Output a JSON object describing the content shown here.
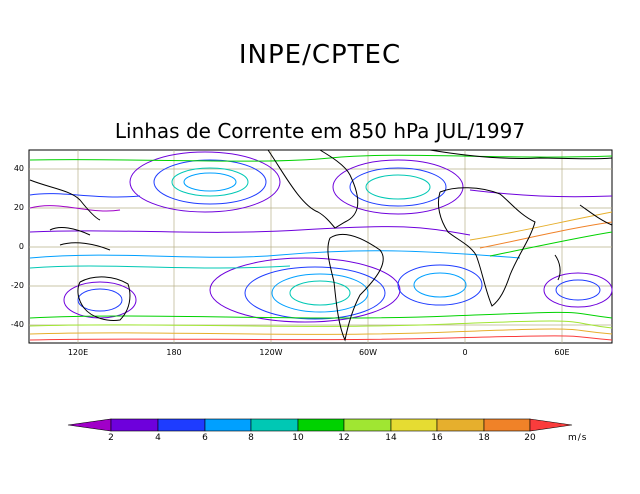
{
  "header": {
    "org_title": "INPE/CPTEC",
    "map_title": "Linhas de Corrente em 850 hPa JUL/1997"
  },
  "map": {
    "lat_labels": [
      "40",
      "20",
      "0",
      "-20",
      "-40"
    ],
    "lon_labels": [
      "120E",
      "180",
      "120W",
      "60W",
      "0",
      "60E"
    ],
    "grid_color": "#b8b08a",
    "frame_color": "#000000"
  },
  "colorbar": {
    "labels": [
      "2",
      "4",
      "6",
      "8",
      "10",
      "12",
      "14",
      "16",
      "18",
      "20"
    ],
    "colors": [
      "#a000c8",
      "#6e00dc",
      "#1e3cff",
      "#00a0ff",
      "#00c8b4",
      "#00d200",
      "#a0e632",
      "#e6dc32",
      "#e6af2d",
      "#f08228",
      "#fa3c3c",
      "#f000a0"
    ],
    "units": "m/s"
  }
}
